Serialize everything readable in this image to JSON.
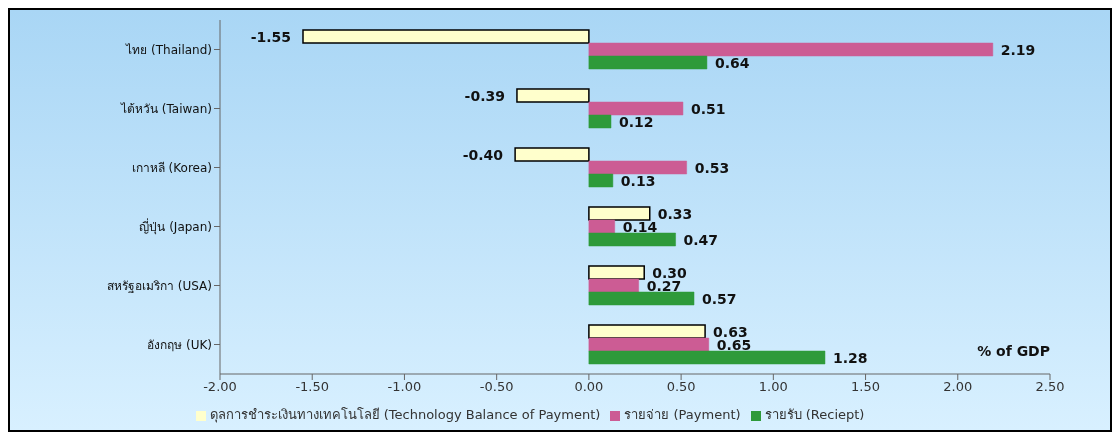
{
  "chart_data": {
    "type": "bar",
    "orientation": "horizontal",
    "xlabel": "% of GDP",
    "categories": [
      "ไทย (Thailand)",
      "ไต้หวัน (Taiwan)",
      "เกาหลี (Korea)",
      "ญี่ปุ่น (Japan)",
      "สหรัฐอเมริกา (USA)",
      "อังกฤษ (UK)"
    ],
    "series": [
      {
        "name": "ดุลการชำระเงินทางเทคโนโลยี (Technology Balance of Payment)",
        "color": "#ffffcc",
        "values": [
          -1.55,
          -0.39,
          -0.4,
          0.33,
          0.3,
          0.63
        ],
        "value_labels": [
          "-1.55",
          "-0.39",
          "-0.40",
          "0.33",
          "0.30",
          "0.63"
        ]
      },
      {
        "name": "รายจ่าย (Payment)",
        "color": "#cc5c94",
        "values": [
          2.19,
          0.51,
          0.53,
          0.14,
          0.27,
          0.65
        ],
        "value_labels": [
          "2.19",
          "0.51",
          "0.53",
          "0.14",
          "0.27",
          "0.65"
        ]
      },
      {
        "name": "รายรับ (Reciept)",
        "color": "#2e9a3a",
        "values": [
          0.64,
          0.12,
          0.13,
          0.47,
          0.57,
          1.28
        ],
        "value_labels": [
          "0.64",
          "0.12",
          "0.13",
          "0.47",
          "0.57",
          "1.28"
        ]
      }
    ],
    "xlim": [
      -2,
      2.5
    ],
    "xticks": [
      {
        "value": -2,
        "label": "-2.00"
      },
      {
        "value": -1.5,
        "label": "-1.50"
      },
      {
        "value": -1,
        "label": "-1.00"
      },
      {
        "value": -0.5,
        "label": "-0.50"
      },
      {
        "value": 0,
        "label": "0.00"
      },
      {
        "value": 0.5,
        "label": "0.50"
      },
      {
        "value": 1,
        "label": "1.00"
      },
      {
        "value": 1.5,
        "label": "1.50"
      },
      {
        "value": 2,
        "label": "2.00"
      },
      {
        "value": 2.5,
        "label": "2.50"
      }
    ],
    "grid": false,
    "legend": "bottom"
  }
}
